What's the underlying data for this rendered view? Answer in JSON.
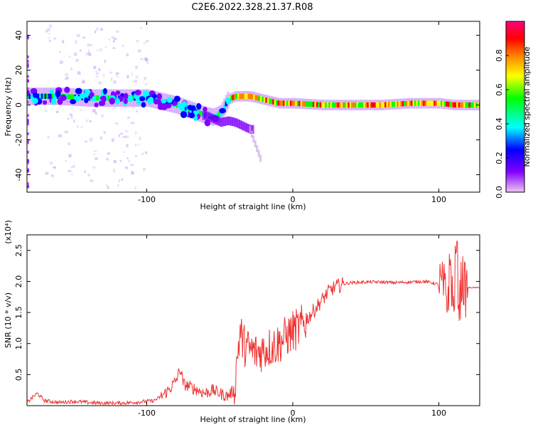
{
  "title": "C2E6.2022.328.21.37.R08",
  "chart_data": [
    {
      "type": "heatmap",
      "xlabel": "Height of straight line (km)",
      "ylabel": "Frequency (Hz)",
      "xlim": [
        -182,
        128
      ],
      "ylim": [
        -50,
        48
      ],
      "xticks": [
        -100,
        0,
        100
      ],
      "xtick_labels": [
        "-100",
        "0",
        "100"
      ],
      "yticks": [
        -40,
        -20,
        0,
        20,
        40
      ],
      "ytick_labels": [
        "-40",
        "-20",
        "0",
        "20",
        "40"
      ],
      "colorbar": {
        "label": "Normalized spectral amplitude",
        "range": [
          0,
          1
        ],
        "ticks": [
          0.0,
          0.2,
          0.4,
          0.6,
          0.8
        ],
        "tick_labels": [
          "0.0",
          "0.2",
          "0.4",
          "0.6",
          "0.8"
        ],
        "colormap": [
          "#f0c8f0",
          "#8000ff",
          "#0000ff",
          "#00ffff",
          "#00ff00",
          "#ffff00",
          "#ff8000",
          "#ff0000",
          "#ff0080"
        ]
      },
      "ridge": {
        "x": [
          -182,
          -160,
          -140,
          -120,
          -100,
          -90,
          -80,
          -70,
          -60,
          -55,
          -50,
          -45,
          -40,
          -30,
          -20,
          -10,
          0,
          20,
          40,
          60,
          80,
          100,
          110,
          128
        ],
        "y": [
          5,
          5,
          4,
          4,
          4,
          2,
          0,
          -3,
          -6,
          -7,
          -5,
          3,
          5,
          5,
          3,
          1,
          1,
          0,
          0,
          0,
          1,
          1,
          0,
          0
        ]
      },
      "branch": {
        "x": [
          -60,
          -55,
          -50,
          -45,
          -40,
          -35,
          -30
        ],
        "y": [
          -6,
          -8,
          -10,
          -9,
          -10,
          -12,
          -14
        ]
      }
    },
    {
      "type": "line",
      "xlabel": "Height of straight line (km)",
      "ylabel": "SNR (10 * v/v)",
      "scale_label": "(x10⁴)",
      "xlim": [
        -182,
        128
      ],
      "ylim": [
        0.0,
        2.75
      ],
      "xticks": [
        -100,
        0,
        100
      ],
      "xtick_labels": [
        "-100",
        "0",
        "100"
      ],
      "yticks": [
        0.5,
        1.0,
        1.5,
        2.0,
        2.5
      ],
      "ytick_labels": [
        "0.5",
        "1.0",
        "1.5",
        "2.0",
        "2.5"
      ],
      "color": "#ee3333",
      "series": [
        {
          "x": [
            -182,
            -175,
            -170,
            -160,
            -150,
            -140,
            -130,
            -120,
            -110,
            -100,
            -95,
            -90,
            -85,
            -80,
            -77,
            -75,
            -70,
            -65,
            -60,
            -55,
            -50,
            -45,
            -40,
            -38,
            -36,
            -34,
            -30,
            -25,
            -20,
            -15,
            -10,
            -5,
            0,
            5,
            10,
            15,
            20,
            25,
            30,
            35,
            40,
            50,
            60,
            70,
            80,
            90,
            95,
            100,
            103,
            106,
            108,
            110,
            112,
            114,
            116,
            118,
            120,
            125,
            128
          ],
          "y": [
            0.05,
            0.2,
            0.08,
            0.05,
            0.07,
            0.05,
            0.04,
            0.04,
            0.05,
            0.07,
            0.08,
            0.15,
            0.25,
            0.4,
            0.6,
            0.35,
            0.3,
            0.25,
            0.2,
            0.25,
            0.2,
            0.15,
            0.25,
            0.8,
            1.2,
            1.0,
            0.9,
            0.85,
            0.9,
            0.95,
            1.0,
            1.1,
            1.2,
            1.25,
            1.4,
            1.55,
            1.7,
            1.85,
            1.92,
            1.96,
            1.98,
            1.99,
            1.99,
            1.98,
            1.99,
            2.0,
            1.98,
            1.95,
            1.9,
            1.7,
            2.3,
            1.5,
            2.6,
            1.6,
            2.1,
            1.85,
            1.9,
            1.9,
            1.9
          ]
        }
      ]
    }
  ]
}
